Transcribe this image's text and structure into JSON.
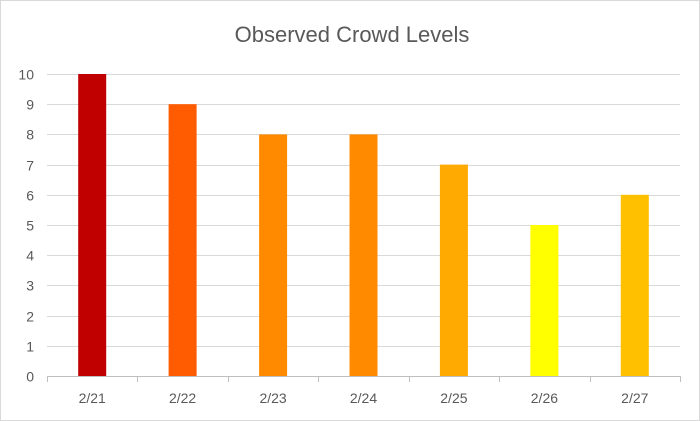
{
  "chart_data": {
    "type": "bar",
    "title": "Observed Crowd Levels",
    "xlabel": "",
    "ylabel": "",
    "categories": [
      "2/21",
      "2/22",
      "2/23",
      "2/24",
      "2/25",
      "2/26",
      "2/27"
    ],
    "values": [
      10,
      9,
      8,
      8,
      7,
      5,
      6
    ],
    "bar_colors": [
      "#C00000",
      "#FF5B00",
      "#FF8A00",
      "#FF8A00",
      "#FFAA00",
      "#FFFF00",
      "#FFC000"
    ],
    "ylim": [
      0,
      10
    ],
    "yticks": [
      0,
      1,
      2,
      3,
      4,
      5,
      6,
      7,
      8,
      9,
      10
    ],
    "grid": true,
    "legend": "none"
  }
}
